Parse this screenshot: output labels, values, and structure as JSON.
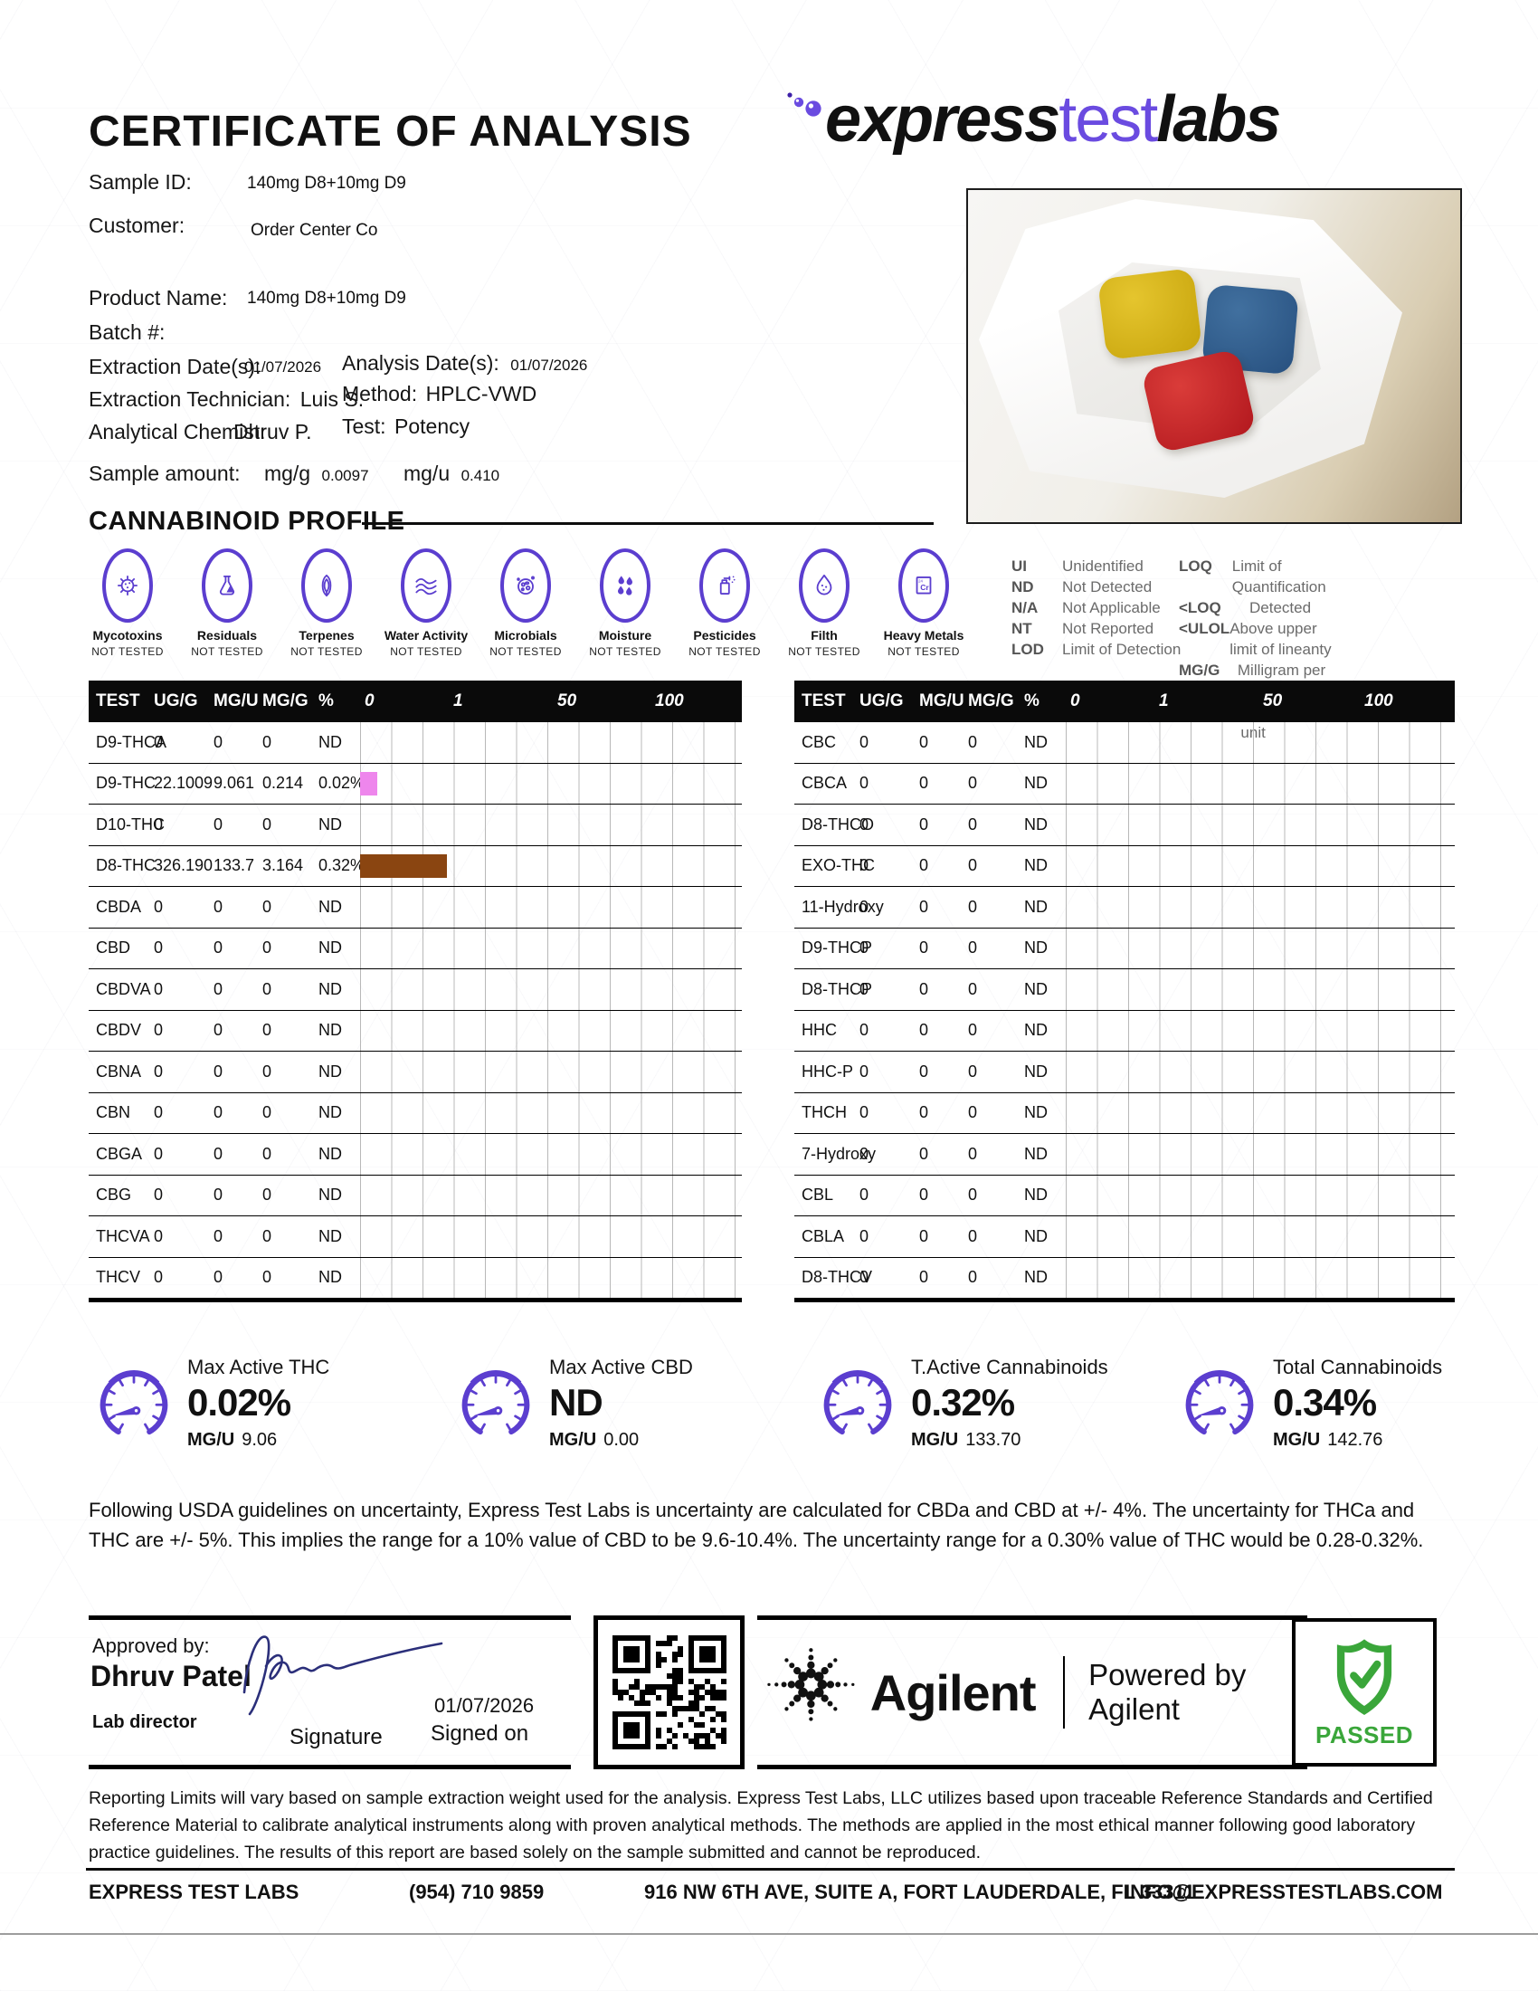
{
  "header": {
    "title": "CERTIFICATE OF ANALYSIS",
    "logo_express": "express",
    "logo_test": "test",
    "logo_labs": "labs"
  },
  "sample_info": {
    "sample_id_label": "Sample ID:",
    "sample_id": "140mg D8+10mg D9",
    "customer_label": "Customer:",
    "customer": "Order Center Co",
    "product_name_label": "Product Name:",
    "product_name": "140mg D8+10mg D9",
    "batch_label": "Batch #:",
    "batch": "",
    "extraction_date_label": "Extraction Date(s):",
    "extraction_date": "01/07/2026",
    "analysis_date_label": "Analysis Date(s):",
    "analysis_date": "01/07/2026",
    "extraction_tech_label": "Extraction Technician:",
    "extraction_tech": "Luis S.",
    "method_label": "Method:",
    "method": "HPLC-VWD",
    "chemist_label": "Analytical Chemist:",
    "chemist": "Dhruv P.",
    "test_label": "Test:",
    "test": "Potency",
    "sample_amount_label": "Sample amount:",
    "mgg_label": "mg/g",
    "mgg_value": "0.0097",
    "mgu_label": "mg/u",
    "mgu_value": "0.410"
  },
  "section_title": "CANNABINOID PROFILE",
  "screening": {
    "panels": [
      {
        "key": "mycotoxins",
        "icon": "mycotoxins-icon",
        "label": "Mycotoxins",
        "status": "NOT TESTED"
      },
      {
        "key": "residuals",
        "icon": "residuals-flask-icon",
        "label": "Residuals",
        "status": "NOT TESTED"
      },
      {
        "key": "terpenes",
        "icon": "terpenes-leaf-icon",
        "label": "Terpenes",
        "status": "NOT TESTED"
      },
      {
        "key": "water",
        "icon": "water-activity-icon",
        "label": "Water Activity",
        "status": "NOT TESTED"
      },
      {
        "key": "microbials",
        "icon": "microbials-icon",
        "label": "Microbials",
        "status": "NOT TESTED"
      },
      {
        "key": "moisture",
        "icon": "moisture-droplets-icon",
        "label": "Moisture",
        "status": "NOT TESTED"
      },
      {
        "key": "pesticides",
        "icon": "pesticides-spray-icon",
        "label": "Pesticides",
        "status": "NOT TESTED"
      },
      {
        "key": "filth",
        "icon": "filth-droplet-icon",
        "label": "Filth",
        "status": "NOT TESTED"
      },
      {
        "key": "heavymetals",
        "icon": "heavy-metals-cr-icon",
        "label": "Heavy Metals",
        "status": "NOT TESTED"
      }
    ]
  },
  "legend": {
    "col1": [
      {
        "abbr": "UI",
        "desc": "Unidentified"
      },
      {
        "abbr": "ND",
        "desc": "Not Detected"
      },
      {
        "abbr": "N/A",
        "desc": "Not Applicable"
      },
      {
        "abbr": "NT",
        "desc": "Not Reported"
      },
      {
        "abbr": "LOD",
        "desc": "Limit of Detection"
      }
    ],
    "col2": [
      {
        "abbr": "LOQ",
        "desc": "Limit of Quantification"
      },
      {
        "abbr": "<LOQ",
        "desc": "Detected"
      },
      {
        "abbr": "<ULOL",
        "desc": "Above upper limit of lineanty"
      },
      {
        "abbr": "MG/G",
        "desc": "Milligram per gram"
      },
      {
        "abbr": "MG/U",
        "desc": "Milligram per unit"
      }
    ]
  },
  "tables": {
    "headers": [
      "TEST",
      "UG/G",
      "MG/U",
      "MG/G",
      "%"
    ],
    "scale": [
      "0",
      "1",
      "50",
      "100"
    ],
    "left_rows": [
      {
        "test": "D9-THCA",
        "ugg": "0",
        "mgu": "0",
        "mgg": "0",
        "pct": "ND",
        "bar_pct": 0,
        "bar_color": ""
      },
      {
        "test": "D9-THC",
        "ugg": "22.1009",
        "mgu": "9.061",
        "mgg": "0.214",
        "pct": "0.02%",
        "bar_pct": 4.5,
        "bar_color": "#ee86ec"
      },
      {
        "test": "D10-THC",
        "ugg": "0",
        "mgu": "0",
        "mgg": "0",
        "pct": "ND",
        "bar_pct": 0,
        "bar_color": ""
      },
      {
        "test": "D8-THC",
        "ugg": "326.190",
        "mgu": "133.7",
        "mgg": "3.164",
        "pct": "0.32%",
        "bar_pct": 22.7,
        "bar_color": "#8a4511"
      },
      {
        "test": "CBDA",
        "ugg": "0",
        "mgu": "0",
        "mgg": "0",
        "pct": "ND",
        "bar_pct": 0,
        "bar_color": ""
      },
      {
        "test": "CBD",
        "ugg": "0",
        "mgu": "0",
        "mgg": "0",
        "pct": "ND",
        "bar_pct": 0,
        "bar_color": ""
      },
      {
        "test": "CBDVA",
        "ugg": "0",
        "mgu": "0",
        "mgg": "0",
        "pct": "ND",
        "bar_pct": 0,
        "bar_color": ""
      },
      {
        "test": "CBDV",
        "ugg": "0",
        "mgu": "0",
        "mgg": "0",
        "pct": "ND",
        "bar_pct": 0,
        "bar_color": ""
      },
      {
        "test": "CBNA",
        "ugg": "0",
        "mgu": "0",
        "mgg": "0",
        "pct": "ND",
        "bar_pct": 0,
        "bar_color": ""
      },
      {
        "test": "CBN",
        "ugg": "0",
        "mgu": "0",
        "mgg": "0",
        "pct": "ND",
        "bar_pct": 0,
        "bar_color": ""
      },
      {
        "test": "CBGA",
        "ugg": "0",
        "mgu": "0",
        "mgg": "0",
        "pct": "ND",
        "bar_pct": 0,
        "bar_color": ""
      },
      {
        "test": "CBG",
        "ugg": "0",
        "mgu": "0",
        "mgg": "0",
        "pct": "ND",
        "bar_pct": 0,
        "bar_color": ""
      },
      {
        "test": "THCVA",
        "ugg": "0",
        "mgu": "0",
        "mgg": "0",
        "pct": "ND",
        "bar_pct": 0,
        "bar_color": ""
      },
      {
        "test": "THCV",
        "ugg": "0",
        "mgu": "0",
        "mgg": "0",
        "pct": "ND",
        "bar_pct": 0,
        "bar_color": ""
      }
    ],
    "right_rows": [
      {
        "test": "CBC",
        "ugg": "0",
        "mgu": "0",
        "mgg": "0",
        "pct": "ND",
        "bar_pct": 0,
        "bar_color": ""
      },
      {
        "test": "CBCA",
        "ugg": "0",
        "mgu": "0",
        "mgg": "0",
        "pct": "ND",
        "bar_pct": 0,
        "bar_color": ""
      },
      {
        "test": "D8-THCO",
        "ugg": "0",
        "mgu": "0",
        "mgg": "0",
        "pct": "ND",
        "bar_pct": 0,
        "bar_color": ""
      },
      {
        "test": "EXO-THC",
        "ugg": "0",
        "mgu": "0",
        "mgg": "0",
        "pct": "ND",
        "bar_pct": 0,
        "bar_color": ""
      },
      {
        "test": "11-Hydroxy",
        "ugg": "0",
        "mgu": "0",
        "mgg": "0",
        "pct": "ND",
        "bar_pct": 0,
        "bar_color": ""
      },
      {
        "test": "D9-THCP",
        "ugg": "0",
        "mgu": "0",
        "mgg": "0",
        "pct": "ND",
        "bar_pct": 0,
        "bar_color": ""
      },
      {
        "test": "D8-THCP",
        "ugg": "0",
        "mgu": "0",
        "mgg": "0",
        "pct": "ND",
        "bar_pct": 0,
        "bar_color": ""
      },
      {
        "test": "HHC",
        "ugg": "0",
        "mgu": "0",
        "mgg": "0",
        "pct": "ND",
        "bar_pct": 0,
        "bar_color": ""
      },
      {
        "test": "HHC-P",
        "ugg": "0",
        "mgu": "0",
        "mgg": "0",
        "pct": "ND",
        "bar_pct": 0,
        "bar_color": ""
      },
      {
        "test": "THCH",
        "ugg": "0",
        "mgu": "0",
        "mgg": "0",
        "pct": "ND",
        "bar_pct": 0,
        "bar_color": ""
      },
      {
        "test": "7-Hydroxy",
        "ugg": "0",
        "mgu": "0",
        "mgg": "0",
        "pct": "ND",
        "bar_pct": 0,
        "bar_color": ""
      },
      {
        "test": "CBL",
        "ugg": "0",
        "mgu": "0",
        "mgg": "0",
        "pct": "ND",
        "bar_pct": 0,
        "bar_color": ""
      },
      {
        "test": "CBLA",
        "ugg": "0",
        "mgu": "0",
        "mgg": "0",
        "pct": "ND",
        "bar_pct": 0,
        "bar_color": ""
      },
      {
        "test": "D8-THCV",
        "ugg": "0",
        "mgu": "0",
        "mgg": "0",
        "pct": "ND",
        "bar_pct": 0,
        "bar_color": ""
      }
    ]
  },
  "gauges": [
    {
      "title": "Max Active THC",
      "value": "0.02%",
      "unit_label": "MG/U",
      "unit_value": "9.06"
    },
    {
      "title": "Max Active CBD",
      "value": "ND",
      "unit_label": "MG/U",
      "unit_value": "0.00"
    },
    {
      "title": "T.Active Cannabinoids",
      "value": "0.32%",
      "unit_label": "MG/U",
      "unit_value": "133.70"
    },
    {
      "title": "Total Cannabinoids",
      "value": "0.34%",
      "unit_label": "MG/U",
      "unit_value": "142.76"
    }
  ],
  "uncertainty_note": "Following USDA guidelines on uncertainty, Express Test Labs is uncertainty are calculated for CBDa and CBD at +/- 4%. The uncertainty for THCa and THC are +/- 5%. This implies the range for a 10% value of CBD to be 9.6-10.4%. The uncertainty range for a 0.30% value of THC would be 0.28-0.32%.",
  "approval": {
    "approved_by_label": "Approved by:",
    "name": "Dhruv Patel",
    "role": "Lab director",
    "signature_label": "Signature",
    "signed_date": "01/07/2026",
    "signed_on_label": "Signed on"
  },
  "agilent": {
    "name": "Agilent",
    "powered_by": "Powered by Agilent"
  },
  "passed_label": "PASSED",
  "footer": {
    "note": "Reporting Limits will vary based on sample extraction weight used for the analysis. Express Test Labs, LLC utilizes based upon traceable Reference Standards and Certified Reference Material to calibrate analytical instruments along with proven analytical methods. The methods are applied in the most ethical manner following good laboratory practice guidelines. The results of this report are based solely on the sample submitted and cannot be reproduced.",
    "company": "EXPRESS TEST LABS",
    "phone": "(954) 710 9859",
    "address": "916 NW 6TH AVE, SUITE A, FORT LAUDERDALE, FL 33311",
    "email": "INFO@EXPRESSTESTLABS.COM"
  },
  "colors": {
    "accent_purple": "#5b3ecf",
    "logo_purple": "#6a4be0",
    "bar_pink": "#ee86ec",
    "bar_brown": "#8a4511",
    "passed_green": "#3aa63a",
    "signature_ink": "#2b2f7a"
  }
}
